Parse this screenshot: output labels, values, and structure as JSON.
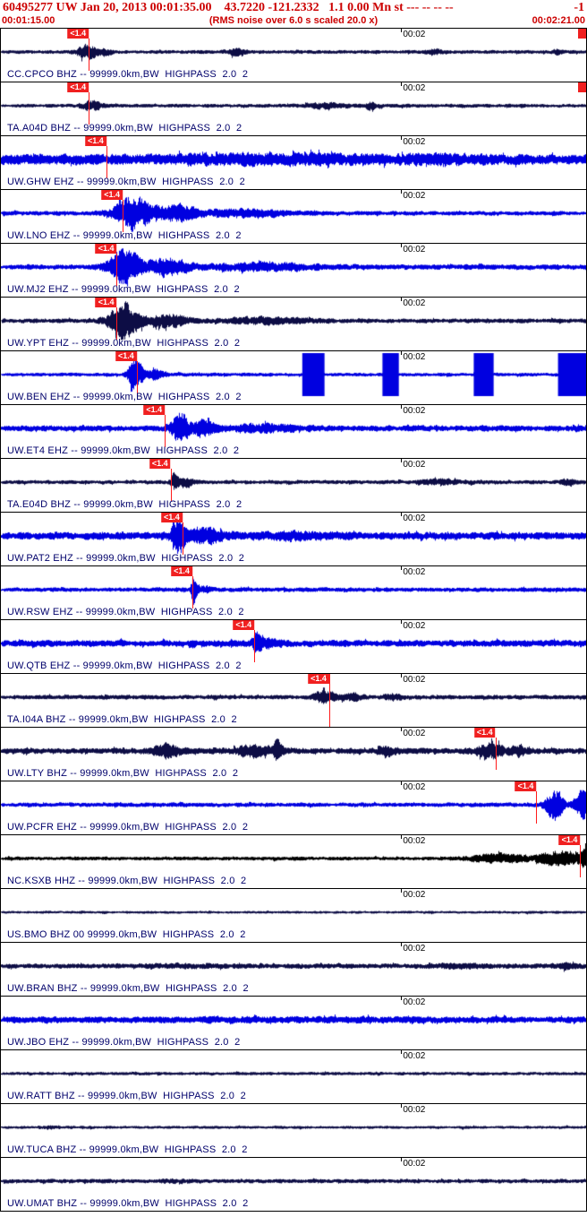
{
  "header": {
    "title": "60495277 UW Jan 20, 2013 00:01:35.00    43.7220 -121.2332   1.1 0.00 Mn st --- -- -- --",
    "right_value": "-1",
    "left_time": "00:01:15.00",
    "center_note": "(RMS noise over 6.0 s scaled 20.0 x)",
    "right_time": "00:02:21.00"
  },
  "palette": {
    "header_red": "#cc0000",
    "pick_red": "#f02020",
    "label_navy": "#00006b",
    "trace_navy": "#0d0d45",
    "trace_blue": "#0000e0",
    "trace_black": "#000000"
  },
  "tick": {
    "label": "00:02",
    "x": 0.684
  },
  "traces": [
    {
      "label": "CC.CPCO BHZ -- 99999.0km,BW  HIGHPASS  2.0  2",
      "color": "#0d0d45",
      "seed": 11,
      "base": 2.5,
      "bursts": [
        {
          "c": 0.145,
          "w": 0.03,
          "a": 9
        },
        {
          "c": 0.175,
          "w": 0.02,
          "a": 4
        },
        {
          "c": 0.4,
          "w": 0.025,
          "a": 3.5
        },
        {
          "c": 0.74,
          "w": 0.02,
          "a": 3
        },
        {
          "c": 0.95,
          "w": 0.012,
          "a": 3
        }
      ],
      "marker": {
        "label": "<1.4",
        "x": 0.15
      },
      "right_flag": true
    },
    {
      "label": "TA.A04D BHZ -- 99999.0km,BW  HIGHPASS  2.0  2",
      "color": "#0d0d45",
      "seed": 22,
      "base": 2.5,
      "bursts": [
        {
          "c": 0.155,
          "w": 0.025,
          "a": 6
        },
        {
          "c": 0.55,
          "w": 0.05,
          "a": 3
        },
        {
          "c": 0.63,
          "w": 0.02,
          "a": 3.5
        }
      ],
      "marker": {
        "label": "<1.4",
        "x": 0.15
      },
      "right_flag": true
    },
    {
      "label": "UW.GHW EHZ -- 99999.0km,BW  HIGHPASS  2.0  2",
      "color": "#0000e0",
      "seed": 33,
      "base": 7,
      "bursts": [
        {
          "c": 0.45,
          "w": 0.3,
          "a": 3
        },
        {
          "c": 0.75,
          "w": 0.15,
          "a": 2
        }
      ],
      "marker": {
        "label": "<1.4",
        "x": 0.18
      }
    },
    {
      "label": "UW.LNO EHZ -- 99999.0km,BW  HIGHPASS  2.0  2",
      "color": "#0000e0",
      "seed": 44,
      "base": 3,
      "bursts": [
        {
          "c": 0.225,
          "w": 0.05,
          "a": 23
        },
        {
          "c": 0.3,
          "w": 0.06,
          "a": 10
        },
        {
          "c": 0.42,
          "w": 0.12,
          "a": 4
        }
      ],
      "marker": {
        "label": "<1.4",
        "x": 0.208
      }
    },
    {
      "label": "UW.MJ2 EHZ -- 99999.0km,BW  HIGHPASS  2.0  2",
      "color": "#0000e0",
      "seed": 55,
      "base": 3.5,
      "bursts": [
        {
          "c": 0.21,
          "w": 0.045,
          "a": 23
        },
        {
          "c": 0.285,
          "w": 0.055,
          "a": 11
        },
        {
          "c": 0.45,
          "w": 0.15,
          "a": 4
        }
      ],
      "marker": {
        "label": "<1.4",
        "x": 0.198
      }
    },
    {
      "label": "UW.YPT EHZ -- 99999.0km,BW  HIGHPASS  2.0  2",
      "color": "#0d0d45",
      "seed": 66,
      "base": 3,
      "bursts": [
        {
          "c": 0.21,
          "w": 0.045,
          "a": 21
        },
        {
          "c": 0.285,
          "w": 0.05,
          "a": 9
        },
        {
          "c": 0.45,
          "w": 0.12,
          "a": 3.5
        }
      ],
      "marker": {
        "label": "<1.4",
        "x": 0.198
      }
    },
    {
      "label": "UW.BEN EHZ -- 99999.0km,BW  HIGHPASS  2.0  2",
      "color": "#0000e0",
      "seed": 77,
      "base": 2.5,
      "bursts": [
        {
          "c": 0.228,
          "w": 0.018,
          "a": 23
        },
        {
          "c": 0.26,
          "w": 0.03,
          "a": 7
        }
      ],
      "blocks": [
        {
          "x": 0.515,
          "w": 0.038
        },
        {
          "x": 0.652,
          "w": 0.028
        },
        {
          "x": 0.808,
          "w": 0.034
        },
        {
          "x": 0.952,
          "w": 0.048
        }
      ],
      "marker": {
        "label": "<1.4",
        "x": 0.232
      }
    },
    {
      "label": "UW.ET4 EHZ -- 99999.0km,BW  HIGHPASS  2.0  2",
      "color": "#0000e0",
      "seed": 88,
      "base": 4,
      "bursts": [
        {
          "c": 0.305,
          "w": 0.022,
          "a": 23
        },
        {
          "c": 0.345,
          "w": 0.03,
          "a": 11
        },
        {
          "c": 0.45,
          "w": 0.1,
          "a": 4
        }
      ],
      "marker": {
        "label": "<1.4",
        "x": 0.28
      }
    },
    {
      "label": "TA.E04D BHZ -- 99999.0km,BW  HIGHPASS  2.0  2",
      "color": "#0d0d45",
      "seed": 99,
      "base": 2.6,
      "bursts": [
        {
          "c": 0.295,
          "w": 0.01,
          "a": 13
        },
        {
          "c": 0.315,
          "w": 0.025,
          "a": 5
        },
        {
          "c": 0.75,
          "w": 0.08,
          "a": 2.5
        },
        {
          "c": 0.97,
          "w": 0.02,
          "a": 4
        }
      ],
      "marker": {
        "label": "<1.4",
        "x": 0.29
      }
    },
    {
      "label": "UW.PAT2 EHZ -- 99999.0km,BW  HIGHPASS  2.0  2",
      "color": "#0000e0",
      "seed": 110,
      "base": 5,
      "bursts": [
        {
          "c": 0.302,
          "w": 0.02,
          "a": 23
        },
        {
          "c": 0.35,
          "w": 0.04,
          "a": 9
        },
        {
          "c": 0.5,
          "w": 0.12,
          "a": 3
        }
      ],
      "marker": {
        "label": "<1.4",
        "x": 0.31
      }
    },
    {
      "label": "UW.RSW EHZ -- 99999.0km,BW  HIGHPASS  2.0  2",
      "color": "#0000e0",
      "seed": 121,
      "base": 3,
      "bursts": [
        {
          "c": 0.328,
          "w": 0.006,
          "a": 20
        },
        {
          "c": 0.345,
          "w": 0.02,
          "a": 4
        }
      ],
      "marker": {
        "label": "<1.4",
        "x": 0.327
      }
    },
    {
      "label": "UW.QTB EHZ -- 99999.0km,BW  HIGHPASS  2.0  2",
      "color": "#0000e0",
      "seed": 132,
      "base": 4.5,
      "bursts": [
        {
          "c": 0.436,
          "w": 0.012,
          "a": 11
        },
        {
          "c": 0.46,
          "w": 0.03,
          "a": 4
        }
      ],
      "marker": {
        "label": "<1.4",
        "x": 0.433
      }
    },
    {
      "label": "TA.I04A BHZ -- 99999.0km,BW  HIGHPASS  2.0  2",
      "color": "#0d0d45",
      "seed": 143,
      "base": 3,
      "bursts": [
        {
          "c": 0.552,
          "w": 0.03,
          "a": 8
        },
        {
          "c": 0.6,
          "w": 0.03,
          "a": 4
        },
        {
          "c": 0.67,
          "w": 0.025,
          "a": 3.5
        }
      ],
      "marker": {
        "label": "<1.4",
        "x": 0.561,
        "long": true
      }
    },
    {
      "label": "UW.LTY BHZ -- 99999.0km,BW  HIGHPASS  2.0  2",
      "color": "#0d0d45",
      "seed": 154,
      "base": 4,
      "bursts": [
        {
          "c": 0.28,
          "w": 0.04,
          "a": 7
        },
        {
          "c": 0.43,
          "w": 0.06,
          "a": 6
        },
        {
          "c": 0.47,
          "w": 0.015,
          "a": 9
        },
        {
          "c": 0.66,
          "w": 0.03,
          "a": 4
        },
        {
          "c": 0.835,
          "w": 0.04,
          "a": 9
        },
        {
          "c": 0.885,
          "w": 0.02,
          "a": 6
        }
      ],
      "marker": {
        "label": "<1.4",
        "x": 0.845
      }
    },
    {
      "label": "UW.PCFR EHZ -- 99999.0km,BW  HIGHPASS  2.0  2",
      "color": "#0000e0",
      "seed": 165,
      "base": 3,
      "bursts": [
        {
          "c": 0.945,
          "w": 0.022,
          "a": 22
        },
        {
          "c": 0.99,
          "w": 0.02,
          "a": 18
        }
      ],
      "marker": {
        "label": "<1.4",
        "x": 0.915
      }
    },
    {
      "label": "NC.KSXB HHZ -- 99999.0km,BW  HIGHPASS  2.0  2",
      "color": "#000000",
      "seed": 176,
      "base": 2.5,
      "bursts": [
        {
          "c": 0.85,
          "w": 0.09,
          "a": 5
        },
        {
          "c": 0.95,
          "w": 0.05,
          "a": 10
        },
        {
          "c": 1.0,
          "w": 0.03,
          "a": 12
        }
      ],
      "marker": {
        "label": "<1.4",
        "x": 0.99
      }
    },
    {
      "label": "US.BMO BHZ 00 99999.0km,BW  HIGHPASS  2.0  2",
      "color": "#0d0d45",
      "seed": 187,
      "base": 1.8,
      "bursts": []
    },
    {
      "label": "UW.BRAN BHZ -- 99999.0km,BW  HIGHPASS  2.0  2",
      "color": "#0d0d45",
      "seed": 198,
      "base": 3.4,
      "bursts": [
        {
          "c": 0.3,
          "w": 0.1,
          "a": 1.2
        },
        {
          "c": 0.78,
          "w": 0.08,
          "a": 1.8
        },
        {
          "c": 0.96,
          "w": 0.03,
          "a": 2.5
        }
      ]
    },
    {
      "label": "UW.JBO EHZ -- 99999.0km,BW  HIGHPASS  2.0  2",
      "color": "#0000e0",
      "seed": 209,
      "base": 4.4,
      "bursts": [
        {
          "c": 0.5,
          "w": 0.35,
          "a": 0.8
        }
      ]
    },
    {
      "label": "UW.RATT BHZ -- 99999.0km,BW  HIGHPASS  2.0  2",
      "color": "#0d0d45",
      "seed": 220,
      "base": 2.2,
      "bursts": []
    },
    {
      "label": "UW.TUCA BHZ -- 99999.0km,BW  HIGHPASS  2.0  2",
      "color": "#0d0d45",
      "seed": 231,
      "base": 2.0,
      "bursts": [
        {
          "c": 0.08,
          "w": 0.02,
          "a": 1.5
        }
      ]
    },
    {
      "label": "UW.UMAT BHZ -- 99999.0km,BW  HIGHPASS  2.0  2",
      "color": "#0d0d45",
      "seed": 242,
      "base": 2.8,
      "bursts": [
        {
          "c": 0.3,
          "w": 0.05,
          "a": 1.2
        }
      ]
    }
  ]
}
